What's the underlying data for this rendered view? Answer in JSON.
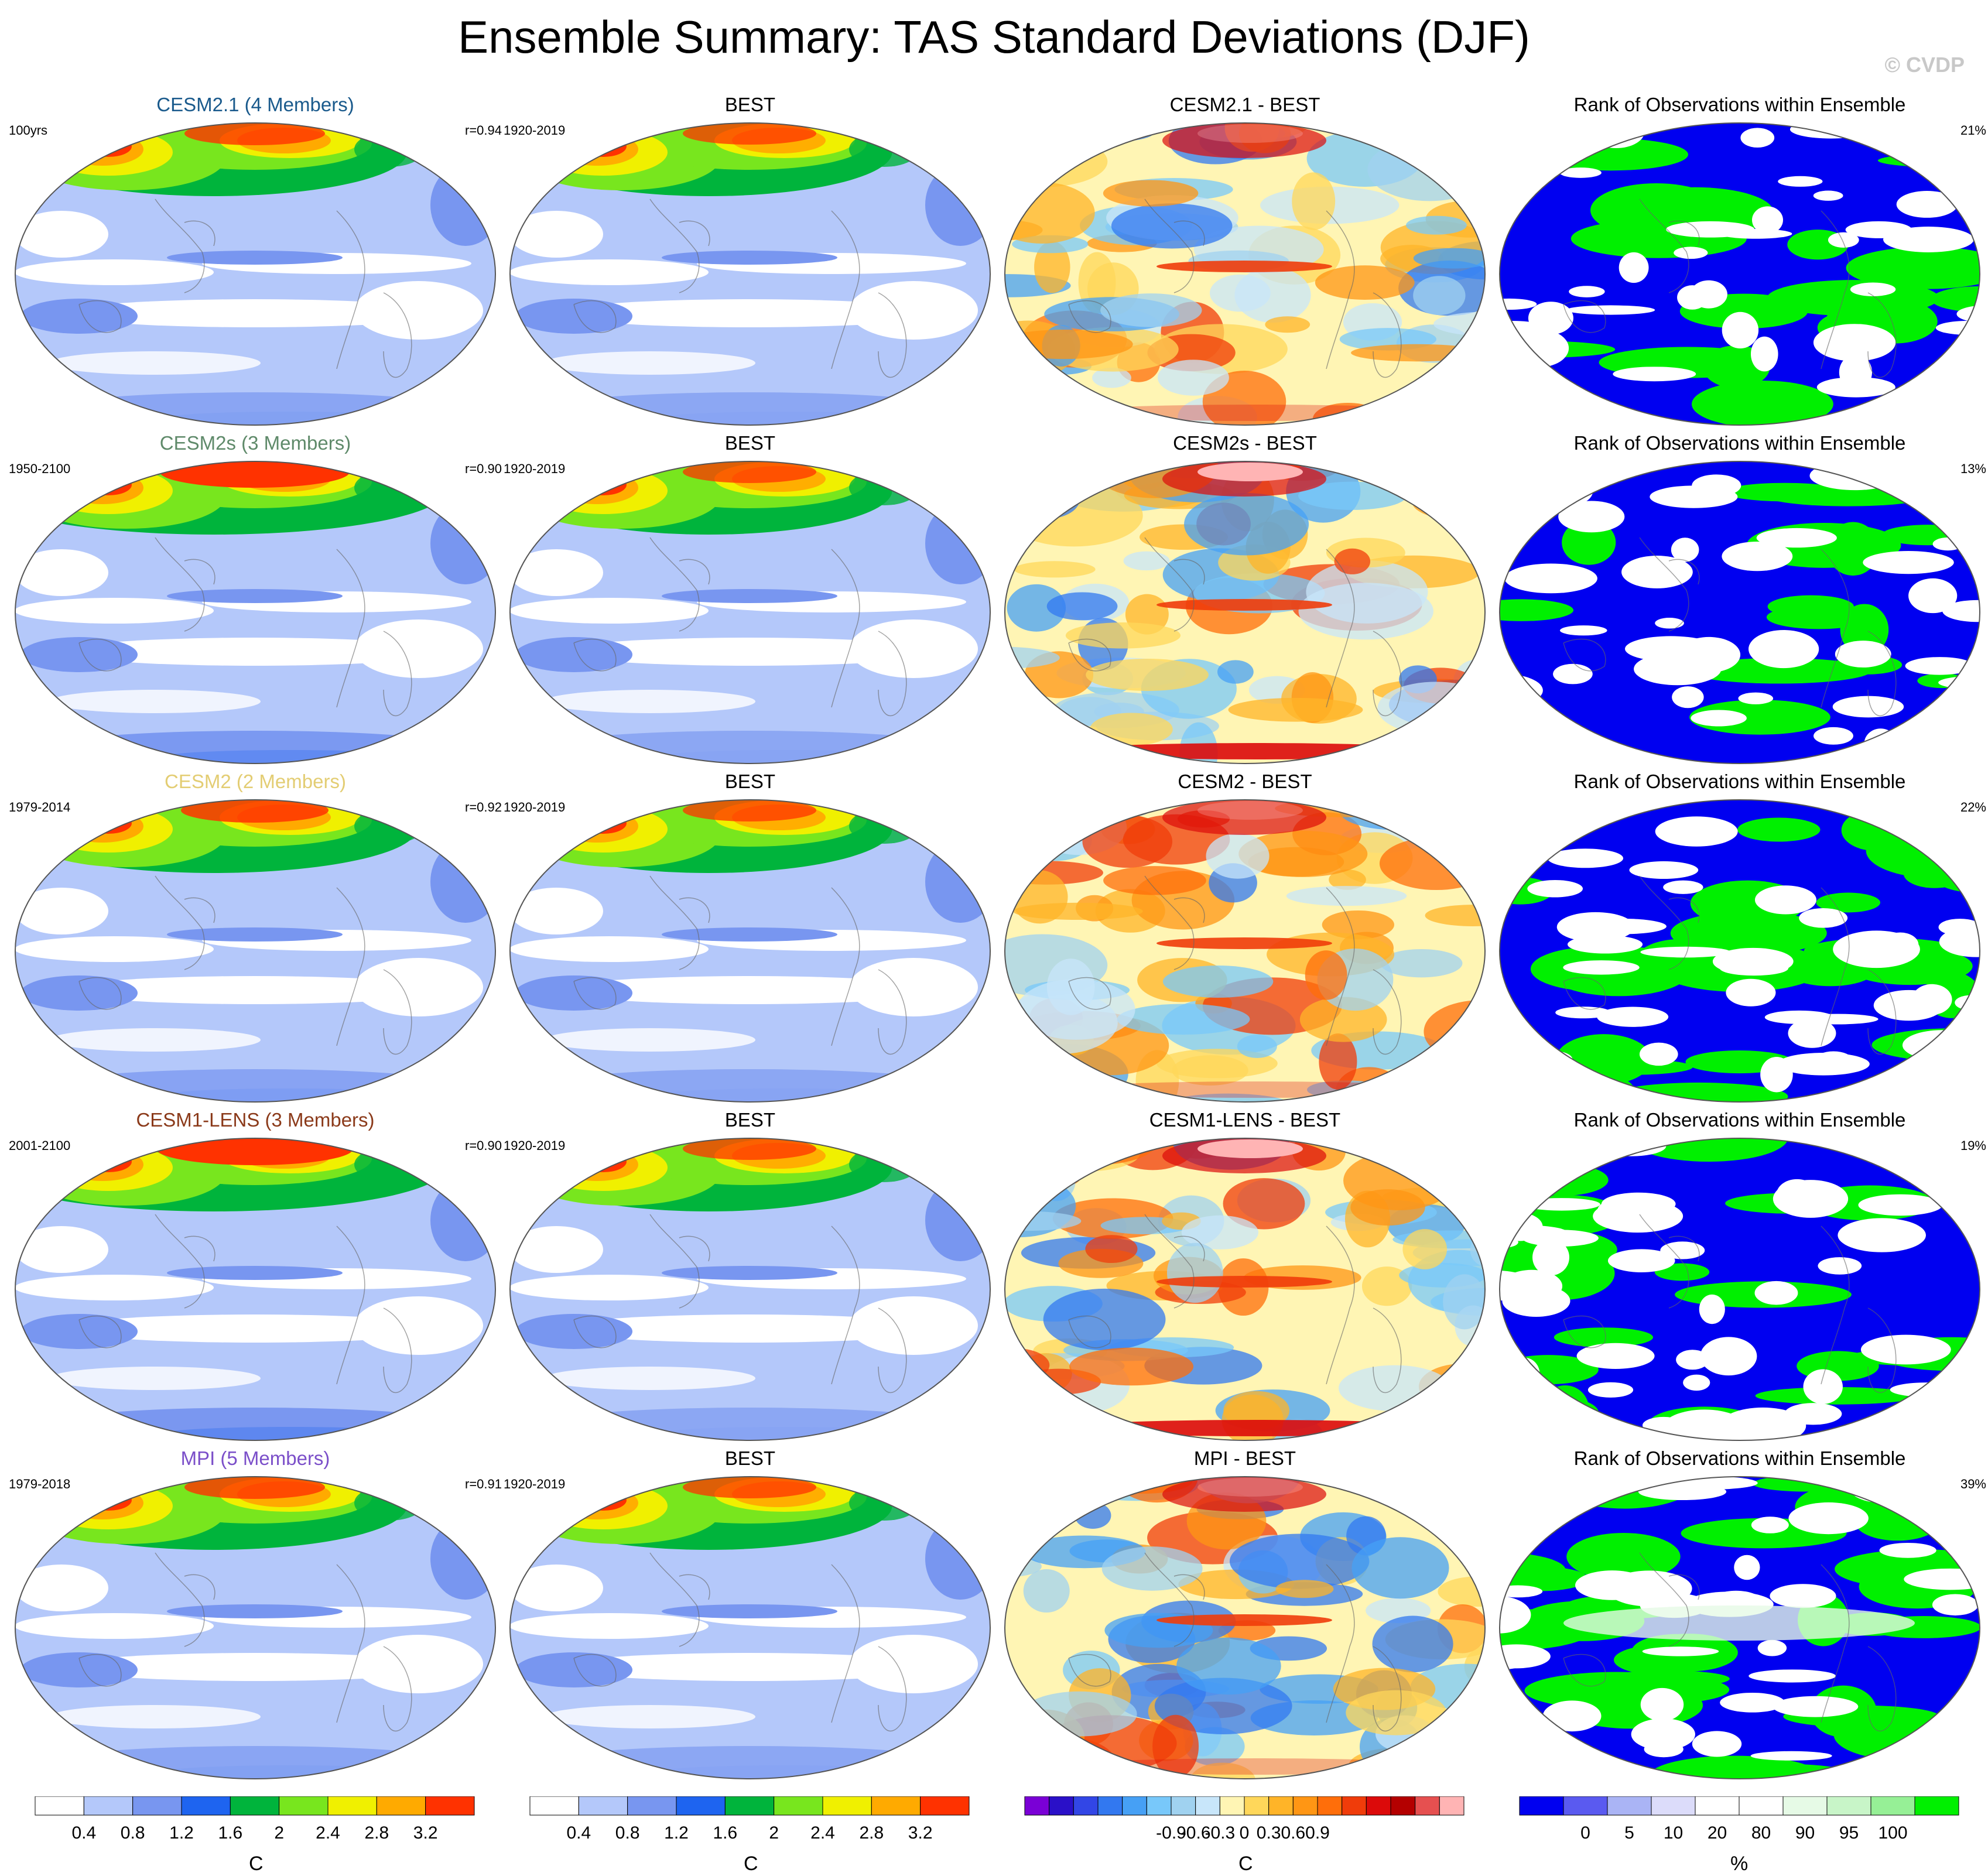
{
  "title": "Ensemble Summary: TAS Standard Deviations (DJF)",
  "watermark": "© CVDP",
  "rows": [
    {
      "model": {
        "title": "CESM2.1 (4 Members)",
        "color": "#1a5a8c",
        "period": "100yrs",
        "r": "r=0.94",
        "high": 1.0
      },
      "obs": {
        "title": "BEST",
        "period": "1920-2019"
      },
      "diff": {
        "title": "CESM2.1 - BEST"
      },
      "rank": {
        "title": "Rank of Observations within Ensemble",
        "pct": "21%",
        "green": 0.45
      }
    },
    {
      "model": {
        "title": "CESM2s (3 Members)",
        "color": "#5f8a6a",
        "period": "1950-2100",
        "r": "r=0.90",
        "high": 1.35
      },
      "obs": {
        "title": "BEST",
        "period": "1920-2019"
      },
      "diff": {
        "title": "CESM2s - BEST"
      },
      "rank": {
        "title": "Rank of Observations within Ensemble",
        "pct": "13%",
        "green": 0.3
      }
    },
    {
      "model": {
        "title": "CESM2 (2 Members)",
        "color": "#e3cd73",
        "period": "1979-2014",
        "r": "r=0.92",
        "high": 1.05
      },
      "obs": {
        "title": "BEST",
        "period": "1920-2019"
      },
      "diff": {
        "title": "CESM2 - BEST"
      },
      "rank": {
        "title": "Rank of Observations within Ensemble",
        "pct": "22%",
        "green": 0.45
      }
    },
    {
      "model": {
        "title": "CESM1-LENS (3 Members)",
        "color": "#8b3a1a",
        "period": "2001-2100",
        "r": "r=0.90",
        "high": 1.4
      },
      "obs": {
        "title": "BEST",
        "period": "1920-2019"
      },
      "diff": {
        "title": "CESM1-LENS - BEST"
      },
      "rank": {
        "title": "Rank of Observations within Ensemble",
        "pct": "19%",
        "green": 0.35
      }
    },
    {
      "model": {
        "title": "MPI (5 Members)",
        "color": "#7b4fc9",
        "period": "1979-2018",
        "r": "r=0.91",
        "high": 1.0
      },
      "obs": {
        "title": "BEST",
        "period": "1920-2019"
      },
      "diff": {
        "title": "MPI - BEST"
      },
      "rank": {
        "title": "Rank of Observations within Ensemble",
        "pct": "39%",
        "green": 0.55
      }
    }
  ],
  "colorbars": {
    "sd": {
      "unit": "C",
      "colors": [
        "#ffffff",
        "#b4c8fa",
        "#7896f0",
        "#1e64f0",
        "#00b43c",
        "#78e61e",
        "#f0f000",
        "#ffaa00",
        "#ff3200"
      ],
      "labels": [
        "0.4",
        "0.8",
        "1.2",
        "1.6",
        "2",
        "2.4",
        "2.8",
        "3.2"
      ]
    },
    "diff": {
      "unit": "C",
      "colors": [
        "#7a00d6",
        "#2a10c8",
        "#3246e6",
        "#3278f0",
        "#46a0f5",
        "#78c8fa",
        "#a0d2f0",
        "#c8e6fa",
        "#fff5b4",
        "#ffd75a",
        "#ffb428",
        "#ff9614",
        "#ff6e0a",
        "#f03c0a",
        "#dc0a0a",
        "#b40000",
        "#e65050",
        "#ffb4b4"
      ],
      "labels": [
        "-0.9",
        "-0.6",
        "-0.3",
        "0",
        "0.3",
        "0.6",
        "0.9"
      ]
    },
    "rank": {
      "unit": "%",
      "colors": [
        "#0000f0",
        "#5a5af0",
        "#aab4f5",
        "#dcdcfa",
        "#ffffff",
        "#ffffff",
        "#e6fae6",
        "#c8f5c8",
        "#96f096",
        "#00f000"
      ],
      "labels": [
        "0",
        "5",
        "10",
        "20",
        "80",
        "90",
        "95",
        "100"
      ]
    }
  }
}
